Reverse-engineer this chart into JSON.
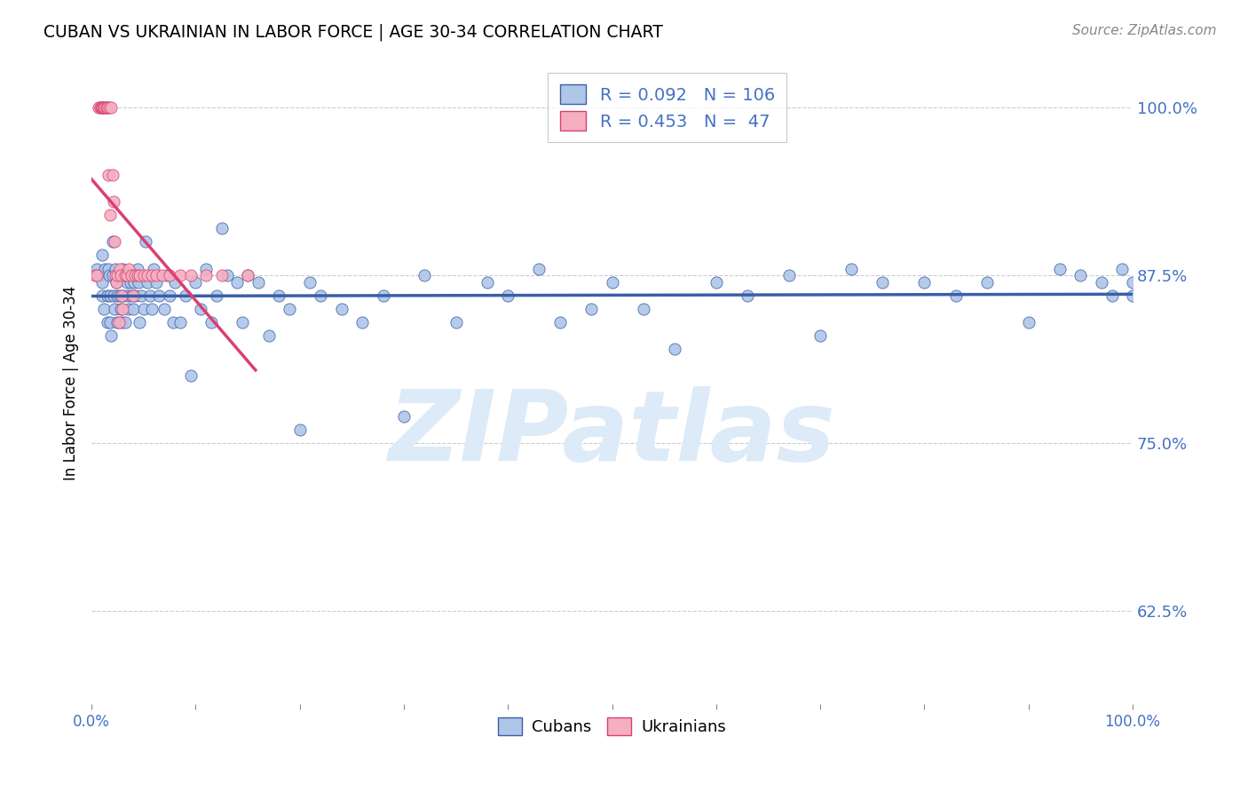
{
  "title": "CUBAN VS UKRAINIAN IN LABOR FORCE | AGE 30-34 CORRELATION CHART",
  "source": "Source: ZipAtlas.com",
  "ylabel": "In Labor Force | Age 30-34",
  "xlim": [
    0.0,
    1.0
  ],
  "ylim": [
    0.555,
    1.035
  ],
  "yticks": [
    0.625,
    0.75,
    0.875,
    1.0
  ],
  "ytick_labels": [
    "62.5%",
    "75.0%",
    "87.5%",
    "100.0%"
  ],
  "cubans_R": 0.092,
  "cubans_N": 106,
  "ukrainians_R": 0.453,
  "ukrainians_N": 47,
  "cubans_color": "#aec6e8",
  "ukrainians_color": "#f4afc0",
  "cubans_line_color": "#3a5fa8",
  "ukrainians_line_color": "#d94070",
  "watermark_color": "#ddeaf8",
  "cubans_x": [
    0.005,
    0.008,
    0.01,
    0.01,
    0.01,
    0.012,
    0.013,
    0.015,
    0.015,
    0.016,
    0.017,
    0.018,
    0.018,
    0.019,
    0.02,
    0.02,
    0.021,
    0.022,
    0.023,
    0.024,
    0.025,
    0.025,
    0.026,
    0.027,
    0.028,
    0.029,
    0.03,
    0.031,
    0.032,
    0.033,
    0.034,
    0.035,
    0.036,
    0.037,
    0.038,
    0.04,
    0.041,
    0.042,
    0.044,
    0.045,
    0.046,
    0.048,
    0.05,
    0.052,
    0.054,
    0.056,
    0.058,
    0.06,
    0.062,
    0.065,
    0.07,
    0.072,
    0.075,
    0.078,
    0.08,
    0.085,
    0.09,
    0.095,
    0.1,
    0.105,
    0.11,
    0.115,
    0.12,
    0.125,
    0.13,
    0.14,
    0.145,
    0.15,
    0.16,
    0.17,
    0.18,
    0.19,
    0.2,
    0.21,
    0.22,
    0.24,
    0.26,
    0.28,
    0.3,
    0.32,
    0.35,
    0.38,
    0.4,
    0.43,
    0.45,
    0.48,
    0.5,
    0.53,
    0.56,
    0.6,
    0.63,
    0.67,
    0.7,
    0.73,
    0.76,
    0.8,
    0.83,
    0.86,
    0.9,
    0.93,
    0.95,
    0.97,
    0.98,
    0.99,
    1.0,
    1.0
  ],
  "cubans_y": [
    0.88,
    0.875,
    0.89,
    0.87,
    0.86,
    0.85,
    0.88,
    0.86,
    0.84,
    0.88,
    0.875,
    0.86,
    0.84,
    0.83,
    0.9,
    0.875,
    0.86,
    0.85,
    0.88,
    0.87,
    0.86,
    0.84,
    0.875,
    0.86,
    0.85,
    0.84,
    0.88,
    0.86,
    0.84,
    0.875,
    0.87,
    0.86,
    0.85,
    0.87,
    0.86,
    0.85,
    0.87,
    0.86,
    0.88,
    0.87,
    0.84,
    0.86,
    0.85,
    0.9,
    0.87,
    0.86,
    0.85,
    0.88,
    0.87,
    0.86,
    0.85,
    0.875,
    0.86,
    0.84,
    0.87,
    0.84,
    0.86,
    0.8,
    0.87,
    0.85,
    0.88,
    0.84,
    0.86,
    0.91,
    0.875,
    0.87,
    0.84,
    0.875,
    0.87,
    0.83,
    0.86,
    0.85,
    0.76,
    0.87,
    0.86,
    0.85,
    0.84,
    0.86,
    0.77,
    0.875,
    0.84,
    0.87,
    0.86,
    0.88,
    0.84,
    0.85,
    0.87,
    0.85,
    0.82,
    0.87,
    0.86,
    0.875,
    0.83,
    0.88,
    0.87,
    0.87,
    0.86,
    0.87,
    0.84,
    0.88,
    0.875,
    0.87,
    0.86,
    0.88,
    0.86,
    0.87
  ],
  "ukrainians_x": [
    0.003,
    0.005,
    0.007,
    0.008,
    0.009,
    0.01,
    0.01,
    0.011,
    0.012,
    0.013,
    0.014,
    0.015,
    0.015,
    0.016,
    0.017,
    0.018,
    0.019,
    0.02,
    0.021,
    0.022,
    0.023,
    0.024,
    0.025,
    0.026,
    0.027,
    0.028,
    0.029,
    0.03,
    0.032,
    0.034,
    0.036,
    0.038,
    0.04,
    0.042,
    0.044,
    0.046,
    0.05,
    0.054,
    0.058,
    0.062,
    0.068,
    0.075,
    0.085,
    0.095,
    0.11,
    0.125,
    0.15
  ],
  "ukrainians_y": [
    0.875,
    0.875,
    1.0,
    1.0,
    1.0,
    1.0,
    1.0,
    1.0,
    1.0,
    1.0,
    1.0,
    1.0,
    1.0,
    0.95,
    1.0,
    0.92,
    1.0,
    0.95,
    0.93,
    0.9,
    0.875,
    0.87,
    0.875,
    0.84,
    0.88,
    0.875,
    0.86,
    0.85,
    0.875,
    0.875,
    0.88,
    0.875,
    0.86,
    0.875,
    0.875,
    0.875,
    0.875,
    0.875,
    0.875,
    0.875,
    0.875,
    0.875,
    0.875,
    0.875,
    0.875,
    0.875,
    0.875
  ]
}
